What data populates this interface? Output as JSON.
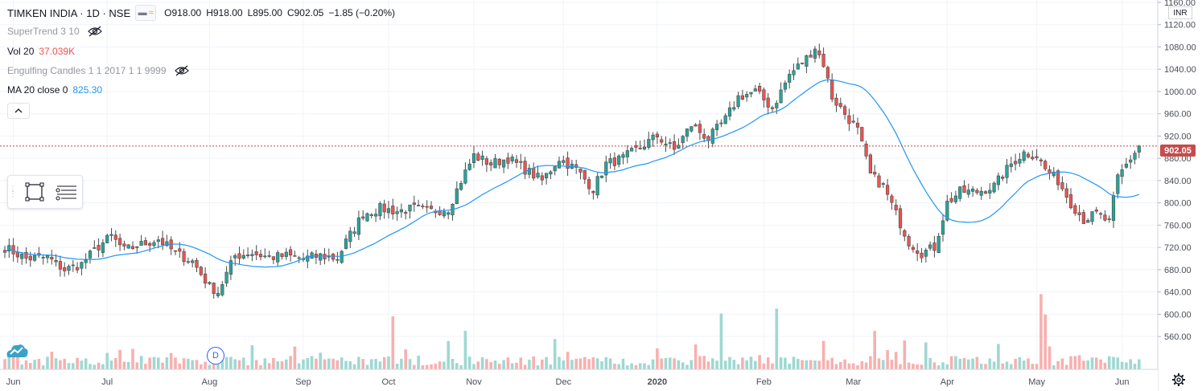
{
  "header": {
    "symbol": "TIMKEN INDIA · 1D · NSE",
    "ohlc": {
      "o": "O918.00",
      "h": "H918.00",
      "l": "L895.00",
      "c": "C902.05",
      "chg": "−1.85 (−0.20%)"
    }
  },
  "indicators": [
    {
      "name": "SuperTrend 3 10",
      "value": "",
      "hidden": true
    },
    {
      "name": "Vol 20",
      "value": "37.039K",
      "hidden": false
    },
    {
      "name": "Engulfing Candles 1 1 2017 1 1 9999",
      "value": "",
      "hidden": true
    },
    {
      "name": "MA 20 close 0",
      "value": "825.30",
      "hidden": false
    }
  ],
  "price_axis": {
    "currency": "INR",
    "last_price_label": "902.05"
  },
  "event_marker": "D",
  "colors": {
    "up": "#26a69a",
    "down": "#ef5350",
    "up_vol": "#9fd8d2",
    "down_vol": "#f7b0ae",
    "ma": "#2196f3",
    "last_line": "#c64b4b"
  },
  "chart_data": {
    "type": "candlestick",
    "title": "TIMKEN INDIA · 1D · NSE",
    "ylim": [
      540,
      1160
    ],
    "y_ticks": [
      560,
      600,
      640,
      680,
      720,
      760,
      800,
      840,
      880,
      920,
      960,
      1000,
      1040,
      1080,
      1120,
      1160
    ],
    "x_ticks": [
      {
        "label": "Jun",
        "index": 2
      },
      {
        "label": "Jul",
        "index": 24
      },
      {
        "label": "Aug",
        "index": 48
      },
      {
        "label": "Sep",
        "index": 70
      },
      {
        "label": "Oct",
        "index": 90
      },
      {
        "label": "Nov",
        "index": 110
      },
      {
        "label": "Dec",
        "index": 131
      },
      {
        "label": "2020",
        "index": 153
      },
      {
        "label": "Feb",
        "index": 178
      },
      {
        "label": "Mar",
        "index": 199
      },
      {
        "label": "Apr",
        "index": 221
      },
      {
        "label": "May",
        "index": 242
      },
      {
        "label": "Jun",
        "index": 262
      }
    ],
    "last_price": 902.05,
    "keypoints": [
      [
        0,
        720
      ],
      [
        5,
        700
      ],
      [
        10,
        702
      ],
      [
        14,
        680
      ],
      [
        18,
        690
      ],
      [
        22,
        722
      ],
      [
        25,
        740
      ],
      [
        28,
        715
      ],
      [
        32,
        725
      ],
      [
        36,
        735
      ],
      [
        40,
        710
      ],
      [
        44,
        695
      ],
      [
        48,
        650
      ],
      [
        50,
        640
      ],
      [
        54,
        705
      ],
      [
        58,
        710
      ],
      [
        62,
        702
      ],
      [
        66,
        705
      ],
      [
        70,
        700
      ],
      [
        74,
        705
      ],
      [
        78,
        700
      ],
      [
        80,
        730
      ],
      [
        84,
        780
      ],
      [
        88,
        790
      ],
      [
        92,
        785
      ],
      [
        96,
        790
      ],
      [
        100,
        785
      ],
      [
        104,
        790
      ],
      [
        107,
        840
      ],
      [
        110,
        885
      ],
      [
        114,
        870
      ],
      [
        118,
        880
      ],
      [
        122,
        860
      ],
      [
        126,
        840
      ],
      [
        130,
        880
      ],
      [
        134,
        860
      ],
      [
        138,
        825
      ],
      [
        141,
        870
      ],
      [
        145,
        880
      ],
      [
        149,
        900
      ],
      [
        153,
        920
      ],
      [
        157,
        895
      ],
      [
        161,
        940
      ],
      [
        165,
        915
      ],
      [
        169,
        950
      ],
      [
        172,
        990
      ],
      [
        176,
        1000
      ],
      [
        180,
        970
      ],
      [
        184,
        1030
      ],
      [
        188,
        1060
      ],
      [
        190,
        1080
      ],
      [
        192,
        1050
      ],
      [
        194,
        990
      ],
      [
        197,
        960
      ],
      [
        200,
        930
      ],
      [
        203,
        850
      ],
      [
        206,
        830
      ],
      [
        209,
        780
      ],
      [
        212,
        730
      ],
      [
        215,
        710
      ],
      [
        218,
        720
      ],
      [
        221,
        800
      ],
      [
        224,
        820
      ],
      [
        228,
        820
      ],
      [
        232,
        830
      ],
      [
        236,
        870
      ],
      [
        239,
        890
      ],
      [
        242,
        885
      ],
      [
        244,
        860
      ],
      [
        247,
        840
      ],
      [
        250,
        800
      ],
      [
        253,
        770
      ],
      [
        256,
        780
      ],
      [
        259,
        765
      ],
      [
        261,
        845
      ],
      [
        264,
        880
      ],
      [
        266,
        902
      ]
    ],
    "volume_scale": [
      0,
      100
    ],
    "volume_spikes": [
      [
        91,
        55
      ],
      [
        108,
        40
      ],
      [
        168,
        58
      ],
      [
        181,
        63
      ],
      [
        204,
        40
      ],
      [
        243,
        78
      ],
      [
        244,
        57
      ]
    ]
  }
}
